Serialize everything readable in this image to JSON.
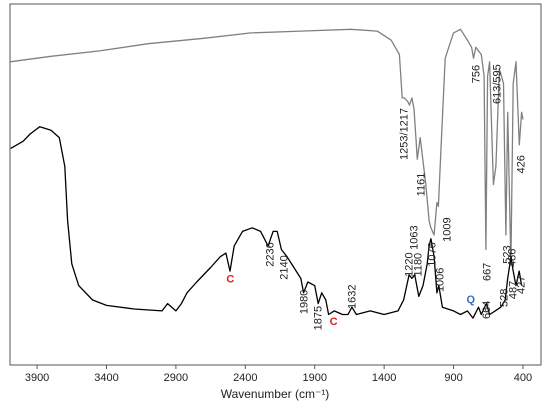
{
  "chart_data": {
    "type": "line",
    "xlabel": "Wavenumber (cm⁻¹)",
    "xlim": [
      4095,
      270
    ],
    "ylim": [
      0,
      100
    ],
    "xticks": [
      3900,
      3400,
      2900,
      2400,
      1900,
      1400,
      900,
      400
    ],
    "series": [
      {
        "color": "#808080",
        "x": [
          4095,
          3800,
          3450,
          3100,
          2700,
          2360,
          2000,
          1640,
          1450,
          1350,
          1290,
          1270,
          1253,
          1230,
          1217,
          1200,
          1185,
          1161,
          1140,
          1100,
          1076,
          1063,
          1040,
          1020,
          1009,
          990,
          960,
          900,
          850,
          800,
          770,
          756,
          740,
          700,
          680,
          667,
          655,
          640,
          613,
          595,
          570,
          540,
          523,
          510,
          487,
          470,
          450,
          426,
          410,
          400
        ],
        "values": [
          84,
          85.5,
          87,
          89,
          90.5,
          92,
          92.5,
          93,
          92.5,
          90,
          86,
          74,
          74,
          73,
          72,
          74,
          71,
          57,
          63,
          50,
          40,
          38,
          36,
          45,
          44,
          60,
          85,
          92,
          93,
          90,
          88,
          85,
          88,
          86,
          80,
          32,
          80,
          84,
          50,
          55,
          82,
          78,
          36,
          70,
          28,
          78,
          84,
          61,
          70,
          68
        ]
      },
      {
        "color": "#000000",
        "x": [
          4090,
          4000,
          3950,
          3880,
          3800,
          3740,
          3700,
          3680,
          3650,
          3600,
          3500,
          3400,
          3200,
          3000,
          2960,
          2900,
          2860,
          2820,
          2750,
          2650,
          2580,
          2540,
          2510,
          2480,
          2420,
          2350,
          2290,
          2236,
          2200,
          2170,
          2140,
          2100,
          2050,
          2000,
          1980,
          1950,
          1900,
          1875,
          1850,
          1820,
          1800,
          1760,
          1700,
          1660,
          1632,
          1600,
          1500,
          1400,
          1300,
          1260,
          1220,
          1200,
          1180,
          1150,
          1120,
          1090,
          1076,
          1063,
          1040,
          1020,
          1006,
          980,
          900,
          850,
          800,
          760,
          720,
          700,
          664,
          640,
          600,
          560,
          528,
          510,
          486,
          470,
          450,
          427,
          410
        ],
        "values": [
          60,
          62,
          64,
          66,
          65,
          63,
          55,
          40,
          28,
          22,
          18,
          16.5,
          15.5,
          15,
          17,
          15,
          17,
          20,
          23,
          27,
          30,
          31,
          26,
          33,
          37,
          38,
          37,
          33,
          37,
          37,
          32,
          30,
          27,
          24,
          20,
          23,
          22,
          17,
          20,
          18,
          14,
          15,
          14,
          14,
          16,
          14,
          15,
          14,
          15,
          18,
          25,
          24,
          25,
          19,
          22,
          28,
          33,
          35,
          30,
          20,
          22,
          16,
          15,
          14,
          15,
          13,
          16,
          14,
          17,
          14,
          15,
          16,
          18,
          24,
          30,
          26,
          22,
          26,
          22
        ]
      }
    ],
    "annotations": [
      {
        "text": "1253/1217",
        "x": 1252,
        "y": 64,
        "rotate": true
      },
      {
        "text": "1161",
        "x": 1129,
        "y": 50,
        "rotate": true
      },
      {
        "text": "1009",
        "x": 942,
        "y": 37.5,
        "rotate": true
      },
      {
        "text": "756",
        "x": 733,
        "y": 80.6,
        "rotate": true
      },
      {
        "text": "667",
        "x": 653,
        "y": 25.8,
        "rotate": true
      },
      {
        "text": "613/595",
        "x": 581,
        "y": 77.8,
        "rotate": true
      },
      {
        "text": "523",
        "x": 509,
        "y": 30.6,
        "rotate": true
      },
      {
        "text": "487",
        "x": 466,
        "y": 20.8,
        "rotate": true
      },
      {
        "text": "426",
        "x": 408,
        "y": 55.6,
        "rotate": true
      },
      {
        "text": "2236",
        "x": 2219,
        "y": 30.6,
        "rotate": true
      },
      {
        "text": "2140",
        "x": 2118,
        "y": 27,
        "rotate": true
      },
      {
        "text": "1980",
        "x": 1974,
        "y": 17.5,
        "rotate": true
      },
      {
        "text": "1875",
        "x": 1873,
        "y": 13,
        "rotate": true
      },
      {
        "text": "1632",
        "x": 1627,
        "y": 18.9,
        "rotate": true
      },
      {
        "text": "1220",
        "x": 1216,
        "y": 27.8,
        "rotate": true
      },
      {
        "text": "1180",
        "x": 1151,
        "y": 27.8,
        "rotate": true
      },
      {
        "text": "1063",
        "x": 1180,
        "y": 35.3,
        "rotate": true
      },
      {
        "text": "1076",
        "x": 1050,
        "y": 30.6,
        "rotate": true
      },
      {
        "text": "1006",
        "x": 992,
        "y": 23.6,
        "rotate": true
      },
      {
        "text": "664",
        "x": 660,
        "y": 15.3,
        "rotate": true
      },
      {
        "text": "528",
        "x": 531,
        "y": 18.6,
        "rotate": true
      },
      {
        "text": "486",
        "x": 473,
        "y": 29.7,
        "rotate": true
      },
      {
        "text": "427",
        "x": 408,
        "y": 22.2,
        "rotate": true
      },
      {
        "text": "C",
        "x": 2508,
        "y": 23.6,
        "color": "#e02020",
        "rotate": false
      },
      {
        "text": "C",
        "x": 1764,
        "y": 11.9,
        "color": "#e02020",
        "rotate": false
      },
      {
        "text": "Q",
        "x": 776,
        "y": 18,
        "color": "#3a6fc0",
        "rotate": false
      }
    ]
  }
}
